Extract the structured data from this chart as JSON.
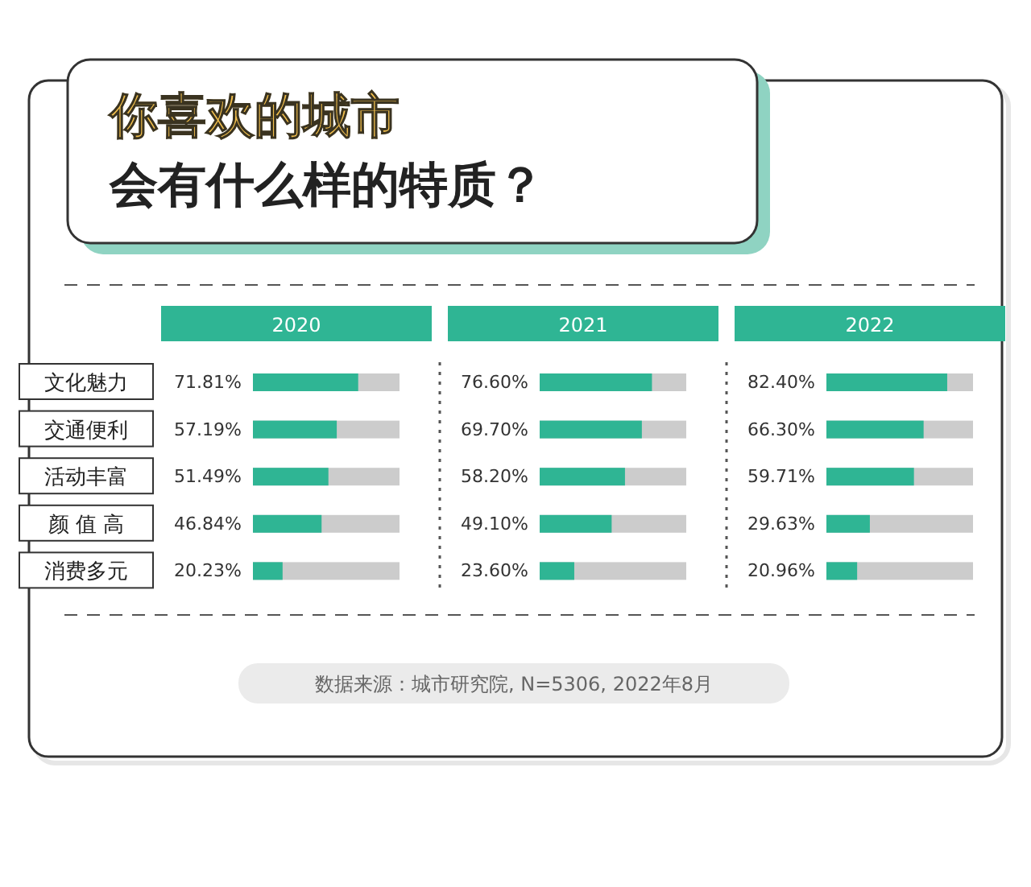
{
  "chart_data": [
    {
      "type": "other",
      "title": "你喜欢的城市",
      "subtitle": "会有什么样的特质？",
      "annotations": [
        "数据来源：城市研究院, N=5306, 2022年8月"
      ]
    },
    {
      "type": "bar",
      "orientation": "horizontal",
      "title": "2020",
      "categories": [
        "文化魅力",
        "交通便利",
        "活动丰富",
        "颜 值 高",
        "消费多元"
      ],
      "values": [
        71.81,
        57.19,
        51.49,
        46.84,
        20.23
      ],
      "value_labels": [
        "71.81%",
        "57.19%",
        "51.49%",
        "46.84%",
        "20.23%"
      ],
      "xlim": [
        0,
        100
      ],
      "color": "#2fb594",
      "tick_labels": "y"
    },
    {
      "type": "bar",
      "orientation": "horizontal",
      "title": "2021",
      "categories": [
        null,
        null,
        null,
        null,
        null
      ],
      "values": [
        76.6,
        69.7,
        58.2,
        49.1,
        23.6
      ],
      "value_labels": [
        "76.60%",
        "69.70%",
        "58.20%",
        "49.10%",
        "23.60%"
      ],
      "xlim": [
        0,
        100
      ],
      "color": "#2fb594",
      "tick_labels": false
    },
    {
      "type": "bar",
      "orientation": "horizontal",
      "title": "2022",
      "categories": [
        null,
        null,
        null,
        null,
        null
      ],
      "values": [
        82.4,
        66.3,
        59.71,
        29.63,
        20.96
      ],
      "value_labels": [
        "82.40%",
        "66.30%",
        "59.71%",
        "29.63%",
        "20.96%"
      ],
      "xlim": [
        0,
        100
      ],
      "color": "#2fb594",
      "tick_labels": false
    }
  ]
}
